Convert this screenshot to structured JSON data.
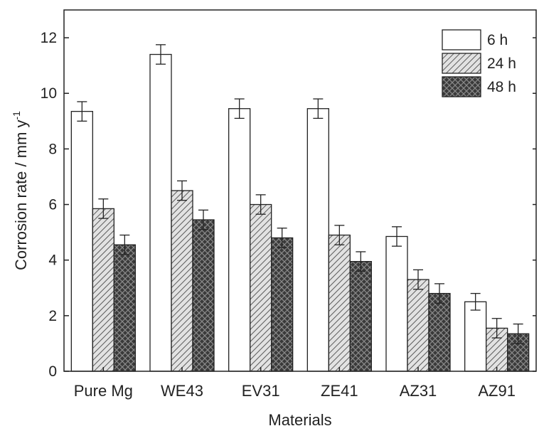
{
  "chart_data": {
    "type": "bar",
    "xlabel": "Materials",
    "ylabel": "Corrosion rate / mm y",
    "ylabel_sup": "-1",
    "ylim": [
      0,
      13
    ],
    "yticks": [
      0,
      2,
      4,
      6,
      8,
      10,
      12
    ],
    "categories": [
      "Pure Mg",
      "WE43",
      "EV31",
      "ZE41",
      "AZ31",
      "AZ91"
    ],
    "series": [
      {
        "name": "6 h",
        "values": [
          9.35,
          11.4,
          9.45,
          9.45,
          4.85,
          2.5
        ],
        "errors": [
          0.35,
          0.35,
          0.35,
          0.35,
          0.35,
          0.3
        ]
      },
      {
        "name": "24 h",
        "values": [
          5.85,
          6.5,
          6.0,
          4.9,
          3.3,
          1.55
        ],
        "errors": [
          0.35,
          0.35,
          0.35,
          0.35,
          0.35,
          0.35
        ]
      },
      {
        "name": "48 h",
        "values": [
          4.55,
          5.45,
          4.8,
          3.95,
          2.8,
          1.35
        ],
        "errors": [
          0.35,
          0.35,
          0.35,
          0.35,
          0.35,
          0.35
        ]
      }
    ],
    "legend_position": "top-right",
    "grid": false
  }
}
